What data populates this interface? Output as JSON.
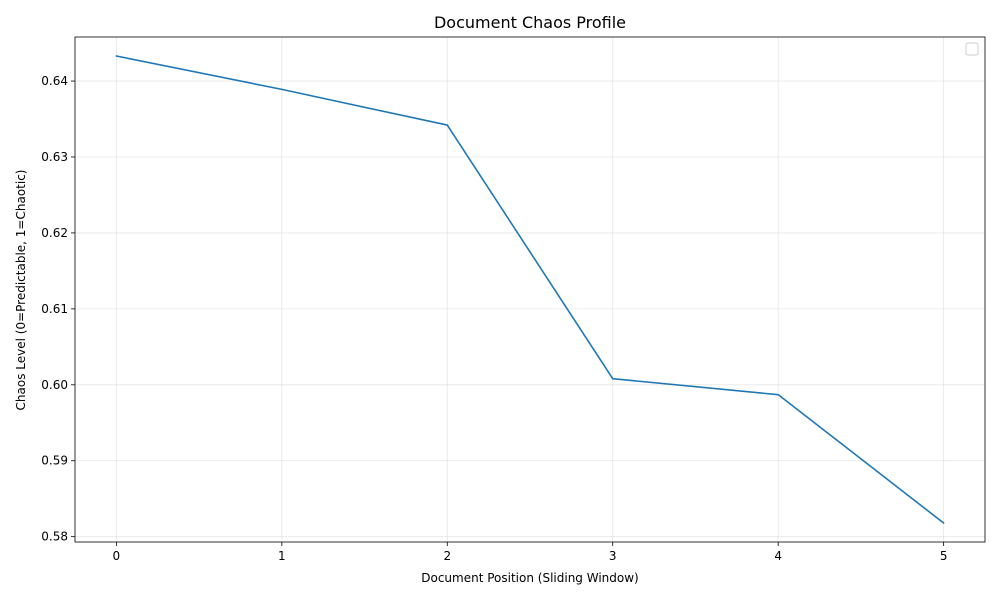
{
  "chart_data": {
    "type": "line",
    "title": "Document Chaos Profile",
    "xlabel": "Document Position (Sliding Window)",
    "ylabel": "Chaos Level (0=Predictable, 1=Chaotic)",
    "x": [
      0,
      1,
      2,
      3,
      4,
      5
    ],
    "series": [
      {
        "values": [
          0.6433,
          0.6389,
          0.6342,
          0.6008,
          0.5987,
          0.5818
        ],
        "color": "#1f77b4"
      }
    ],
    "xlim": [
      -0.25,
      5.25
    ],
    "ylim": [
      0.5793,
      0.6458
    ],
    "xticks": [
      "0",
      "1",
      "2",
      "3",
      "4",
      "5"
    ],
    "yticks": [
      "0.58",
      "0.59",
      "0.60",
      "0.61",
      "0.62",
      "0.63",
      "0.64"
    ],
    "grid": true,
    "legend": "top-right (empty)"
  }
}
